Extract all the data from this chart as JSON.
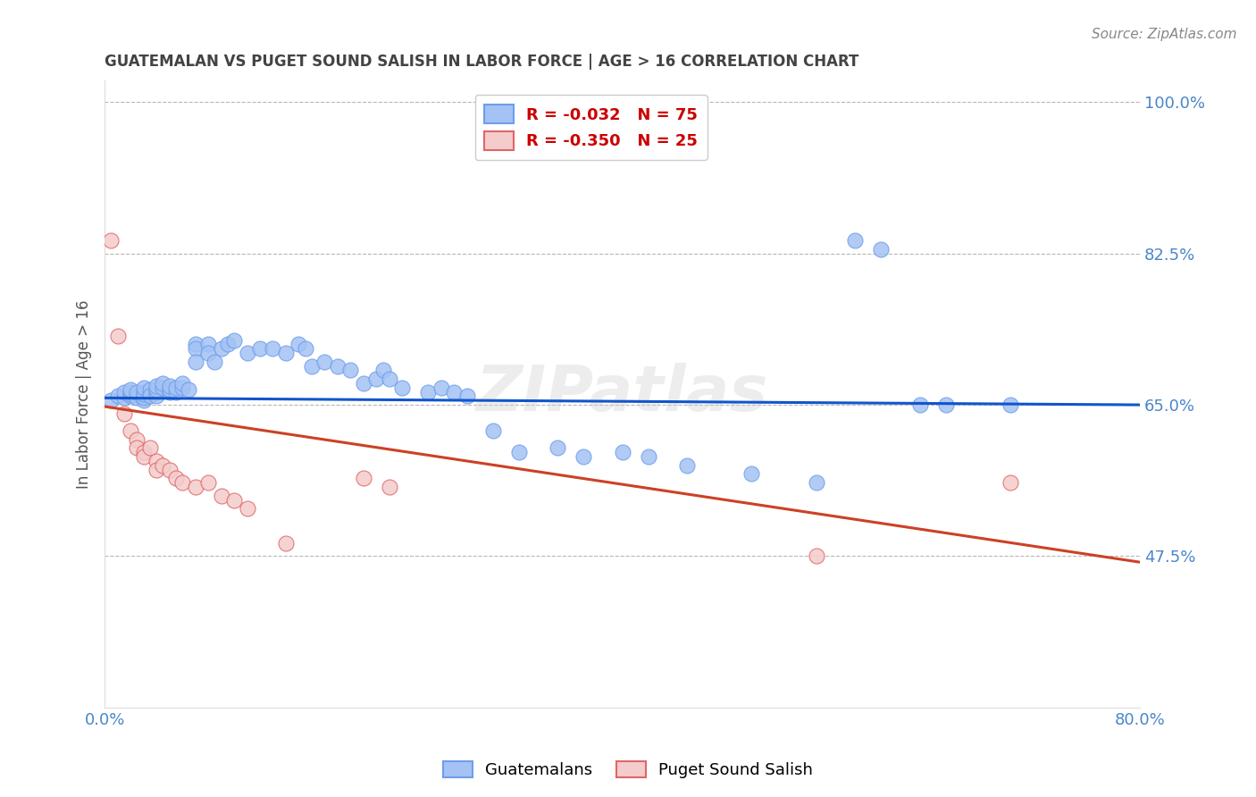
{
  "title": "GUATEMALAN VS PUGET SOUND SALISH IN LABOR FORCE | AGE > 16 CORRELATION CHART",
  "source": "Source: ZipAtlas.com",
  "ylabel": "In Labor Force | Age > 16",
  "x_min": 0.0,
  "x_max": 0.8,
  "y_min": 0.3,
  "y_max": 1.025,
  "x_ticks": [
    0.0,
    0.1,
    0.2,
    0.3,
    0.4,
    0.5,
    0.6,
    0.7,
    0.8
  ],
  "x_tick_labels": [
    "0.0%",
    "",
    "",
    "",
    "",
    "",
    "",
    "",
    "80.0%"
  ],
  "y_ticks": [
    0.475,
    0.65,
    0.825,
    1.0
  ],
  "y_tick_labels": [
    "47.5%",
    "65.0%",
    "82.5%",
    "100.0%"
  ],
  "blue_color": "#a4c2f4",
  "pink_color": "#f4cccc",
  "blue_edge_color": "#6d9eeb",
  "pink_edge_color": "#e06666",
  "blue_line_color": "#1155cc",
  "pink_line_color": "#cc4125",
  "legend_blue_R": "R = -0.032",
  "legend_blue_N": "N = 75",
  "legend_pink_R": "R = -0.350",
  "legend_pink_N": "N = 25",
  "label_guatemalans": "Guatemalans",
  "label_puget": "Puget Sound Salish",
  "grid_color": "#b7b7b7",
  "title_color": "#434343",
  "tick_label_color": "#4a86c8",
  "blue_scatter_x": [
    0.005,
    0.01,
    0.015,
    0.015,
    0.02,
    0.02,
    0.02,
    0.02,
    0.025,
    0.025,
    0.03,
    0.03,
    0.03,
    0.03,
    0.03,
    0.03,
    0.035,
    0.035,
    0.035,
    0.04,
    0.04,
    0.04,
    0.04,
    0.045,
    0.045,
    0.05,
    0.05,
    0.05,
    0.055,
    0.055,
    0.06,
    0.06,
    0.065,
    0.07,
    0.07,
    0.07,
    0.08,
    0.08,
    0.085,
    0.09,
    0.095,
    0.1,
    0.11,
    0.12,
    0.13,
    0.14,
    0.15,
    0.155,
    0.16,
    0.17,
    0.18,
    0.19,
    0.2,
    0.21,
    0.215,
    0.22,
    0.23,
    0.25,
    0.26,
    0.27,
    0.28,
    0.3,
    0.32,
    0.35,
    0.37,
    0.4,
    0.42,
    0.45,
    0.5,
    0.55,
    0.58,
    0.6,
    0.63,
    0.65,
    0.7
  ],
  "blue_scatter_y": [
    0.655,
    0.66,
    0.658,
    0.665,
    0.66,
    0.662,
    0.665,
    0.668,
    0.658,
    0.665,
    0.66,
    0.655,
    0.658,
    0.665,
    0.662,
    0.67,
    0.662,
    0.668,
    0.66,
    0.665,
    0.66,
    0.668,
    0.672,
    0.67,
    0.675,
    0.665,
    0.668,
    0.672,
    0.665,
    0.67,
    0.67,
    0.675,
    0.668,
    0.72,
    0.715,
    0.7,
    0.72,
    0.71,
    0.7,
    0.715,
    0.72,
    0.725,
    0.71,
    0.715,
    0.715,
    0.71,
    0.72,
    0.715,
    0.695,
    0.7,
    0.695,
    0.69,
    0.675,
    0.68,
    0.69,
    0.68,
    0.67,
    0.665,
    0.67,
    0.665,
    0.66,
    0.62,
    0.595,
    0.6,
    0.59,
    0.595,
    0.59,
    0.58,
    0.57,
    0.56,
    0.84,
    0.83,
    0.65,
    0.65,
    0.65
  ],
  "pink_scatter_x": [
    0.005,
    0.01,
    0.015,
    0.02,
    0.025,
    0.025,
    0.03,
    0.03,
    0.035,
    0.04,
    0.04,
    0.045,
    0.05,
    0.055,
    0.06,
    0.07,
    0.08,
    0.09,
    0.1,
    0.11,
    0.14,
    0.2,
    0.22,
    0.55,
    0.7
  ],
  "pink_scatter_y": [
    0.84,
    0.73,
    0.64,
    0.62,
    0.61,
    0.6,
    0.595,
    0.59,
    0.6,
    0.585,
    0.575,
    0.58,
    0.575,
    0.565,
    0.56,
    0.555,
    0.56,
    0.545,
    0.54,
    0.53,
    0.49,
    0.565,
    0.555,
    0.475,
    0.56
  ],
  "blue_line_x": [
    0.0,
    0.8
  ],
  "blue_line_y": [
    0.658,
    0.65
  ],
  "pink_line_x": [
    0.0,
    0.8
  ],
  "pink_line_y": [
    0.648,
    0.468
  ]
}
